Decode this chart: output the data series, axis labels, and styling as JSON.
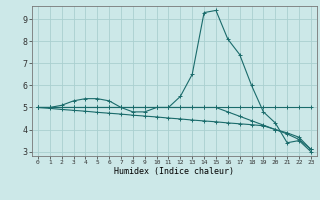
{
  "xlabel": "Humidex (Indice chaleur)",
  "ylabel": "",
  "background_color": "#cce8e8",
  "grid_color": "#aad0d0",
  "line_color": "#1a6b6b",
  "x_data": [
    0,
    1,
    2,
    3,
    4,
    5,
    6,
    7,
    8,
    9,
    10,
    11,
    12,
    13,
    14,
    15,
    16,
    17,
    18,
    19,
    20,
    21,
    22,
    23
  ],
  "curves": [
    [
      5.0,
      5.0,
      5.1,
      5.3,
      5.4,
      5.4,
      5.3,
      5.0,
      4.8,
      4.8,
      5.0,
      5.0,
      5.5,
      6.5,
      9.3,
      9.4,
      8.1,
      7.4,
      6.0,
      4.8,
      4.3,
      3.4,
      3.5,
      3.0
    ],
    [
      5.0,
      5.0,
      5.0,
      5.0,
      5.0,
      5.0,
      5.0,
      5.0,
      5.0,
      5.0,
      5.0,
      5.0,
      5.0,
      5.0,
      5.0,
      5.0,
      5.0,
      5.0,
      5.0,
      5.0,
      5.0,
      5.0,
      5.0,
      5.0
    ],
    [
      5.0,
      5.0,
      5.0,
      5.0,
      5.0,
      5.0,
      5.0,
      5.0,
      5.0,
      5.0,
      5.0,
      5.0,
      5.0,
      5.0,
      5.0,
      5.0,
      4.8,
      4.6,
      4.4,
      4.2,
      4.0,
      3.8,
      3.55,
      3.1
    ],
    [
      5.0,
      4.96,
      4.91,
      4.87,
      4.83,
      4.78,
      4.74,
      4.7,
      4.65,
      4.61,
      4.57,
      4.52,
      4.48,
      4.43,
      4.39,
      4.35,
      4.3,
      4.26,
      4.22,
      4.17,
      4.0,
      3.85,
      3.65,
      3.1
    ]
  ],
  "ylim": [
    2.8,
    9.6
  ],
  "xlim": [
    -0.5,
    23.5
  ],
  "yticks": [
    3,
    4,
    5,
    6,
    7,
    8,
    9
  ],
  "xticks": [
    0,
    1,
    2,
    3,
    4,
    5,
    6,
    7,
    8,
    9,
    10,
    11,
    12,
    13,
    14,
    15,
    16,
    17,
    18,
    19,
    20,
    21,
    22,
    23
  ],
  "marker": "+"
}
